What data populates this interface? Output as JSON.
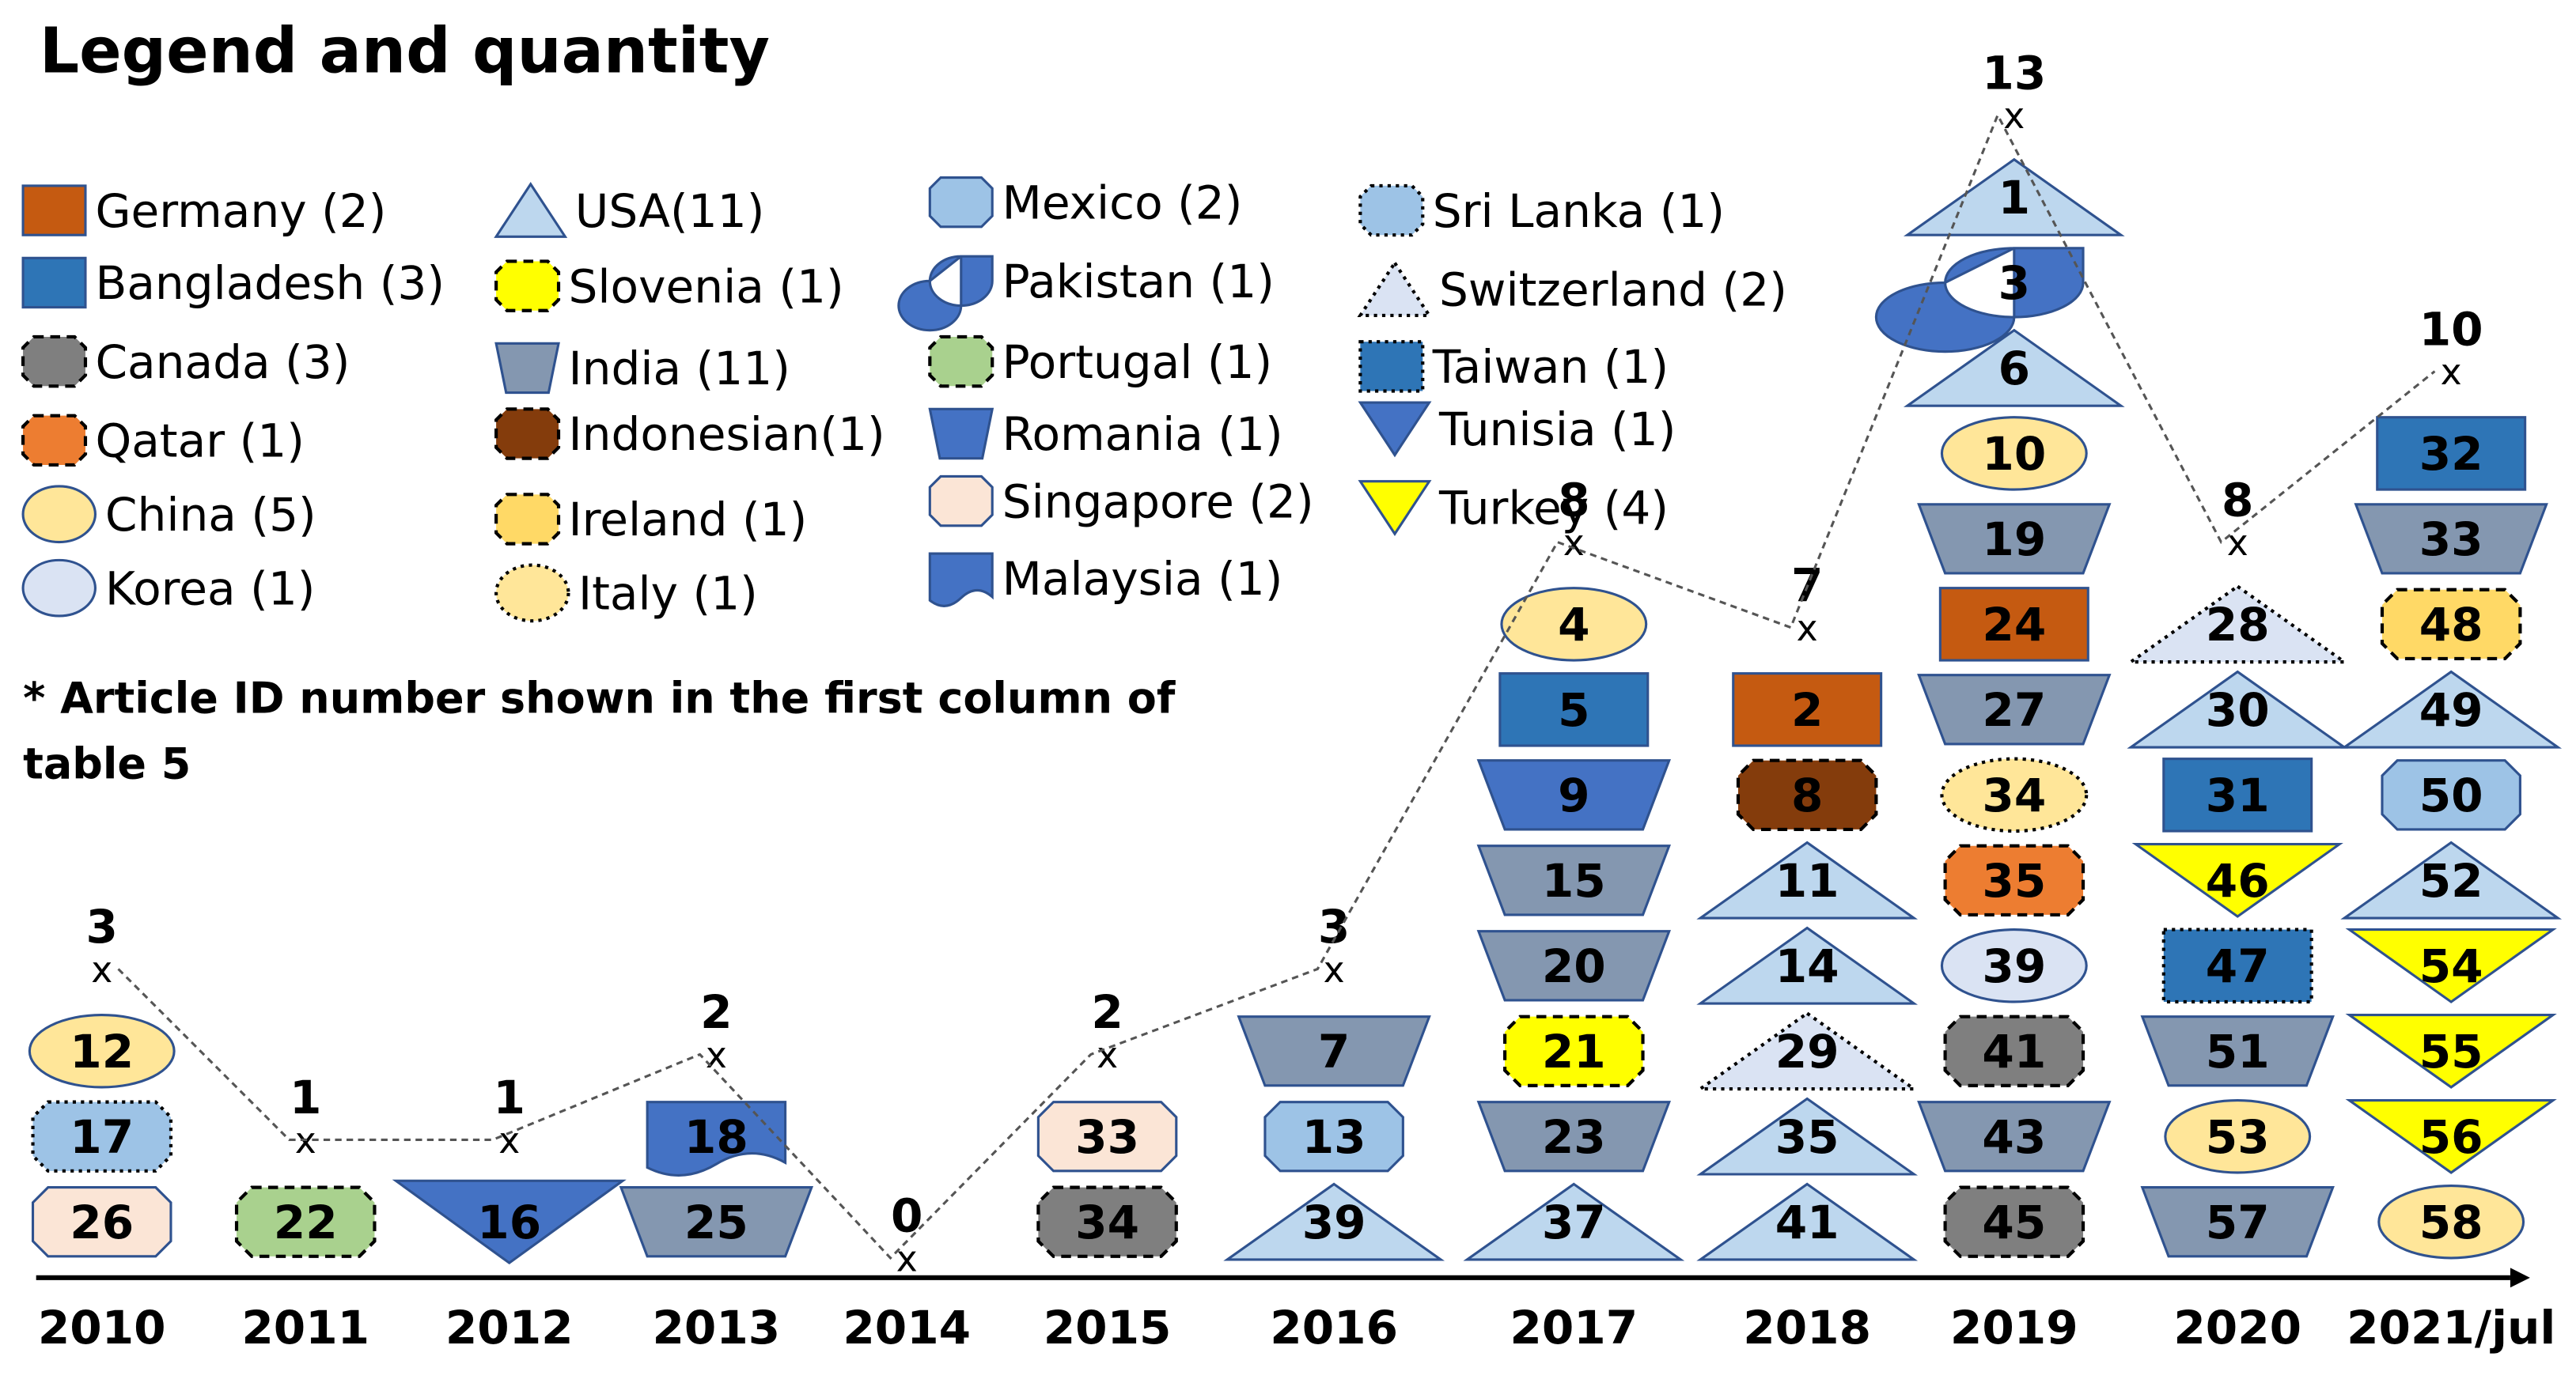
{
  "title": "Legend and quantity",
  "note_line1": "* Article ID number shown in the first column of",
  "note_line2": "table 5",
  "colors": {
    "germany": "#c55a11",
    "bangladesh": "#2e75b6",
    "canada": "#7f7f7f",
    "qatar": "#ed7d31",
    "china": "#ffe699",
    "korea": "#dae3f3",
    "usa": "#bdd7ee",
    "slovenia": "#ffff00",
    "india": "#8497b0",
    "indonesia": "#843c0c",
    "ireland": "#ffd966",
    "italy": "#ffe699",
    "mexico": "#9dc3e6",
    "pakistan": "#4472c4",
    "portugal": "#a9d18e",
    "romania": "#4472c4",
    "singapore": "#fbe5d6",
    "malaysia": "#4472c4",
    "srilanka": "#9dc3e6",
    "switzerland": "#dae3f3",
    "taiwan": "#2e75b6",
    "tunisia": "#4472c4",
    "turkey": "#ffff00"
  },
  "legend": [
    {
      "key": "germany",
      "shape": "square",
      "label": "Germany (2)"
    },
    {
      "key": "bangladesh",
      "shape": "square",
      "label": "Bangladesh (3)"
    },
    {
      "key": "canada",
      "shape": "octagon-dash",
      "label": "Canada (3)"
    },
    {
      "key": "qatar",
      "shape": "octagon-dash",
      "label": "Qatar (1)"
    },
    {
      "key": "china",
      "shape": "ellipse",
      "label": "China (5)"
    },
    {
      "key": "korea",
      "shape": "ellipse",
      "label": "Korea (1)"
    },
    {
      "key": "usa",
      "shape": "triangle",
      "label": "USA(11)"
    },
    {
      "key": "slovenia",
      "shape": "octagon-dash",
      "label": "Slovenia (1)"
    },
    {
      "key": "india",
      "shape": "trapezoid",
      "label": "India (11)"
    },
    {
      "key": "indonesia",
      "shape": "octagon-dash",
      "label": "Indonesian(1)"
    },
    {
      "key": "ireland",
      "shape": "octagon-dash",
      "label": "Ireland (1)"
    },
    {
      "key": "italy",
      "shape": "ellipse-dot",
      "label": "Italy (1)"
    },
    {
      "key": "mexico",
      "shape": "octagon",
      "label": "Mexico (2)"
    },
    {
      "key": "pakistan",
      "shape": "teardrop",
      "label": "Pakistan (1)"
    },
    {
      "key": "portugal",
      "shape": "octagon-dash",
      "label": "Portugal (1)"
    },
    {
      "key": "romania",
      "shape": "trapezoid",
      "label": "Romania (1)"
    },
    {
      "key": "singapore",
      "shape": "octagon",
      "label": "Singapore (2)"
    },
    {
      "key": "malaysia",
      "shape": "wave",
      "label": "Malaysia (1)"
    },
    {
      "key": "srilanka",
      "shape": "octagon-dot",
      "label": "Sri Lanka (1)"
    },
    {
      "key": "switzerland",
      "shape": "triangle-dot",
      "label": "Switzerland (2)"
    },
    {
      "key": "taiwan",
      "shape": "square-dot",
      "label": "Taiwan (1)"
    },
    {
      "key": "tunisia",
      "shape": "down-triangle",
      "label": "Tunisia (1)"
    },
    {
      "key": "turkey",
      "shape": "down-triangle",
      "label": "Turkey (4)"
    }
  ],
  "chart_data": {
    "type": "stacked-shape-timeline",
    "title": "Legend and quantity",
    "categories": [
      "2010",
      "2011",
      "2012",
      "2013",
      "2014",
      "2015",
      "2016",
      "2017",
      "2018",
      "2019",
      "2020",
      "2021/jul"
    ],
    "totals": [
      3,
      1,
      1,
      2,
      0,
      2,
      3,
      8,
      7,
      13,
      8,
      10
    ],
    "total_labels": [
      "3",
      "1",
      "1",
      "2",
      "0",
      "2",
      "3",
      "8",
      "7",
      "13",
      "8",
      "10"
    ],
    "marker": "x",
    "stacks": [
      [
        {
          "id": "12",
          "country": "china"
        },
        {
          "id": "17",
          "country": "srilanka"
        },
        {
          "id": "26",
          "country": "singapore"
        }
      ],
      [
        {
          "id": "22",
          "country": "portugal"
        }
      ],
      [
        {
          "id": "16",
          "country": "tunisia"
        }
      ],
      [
        {
          "id": "18",
          "country": "malaysia"
        },
        {
          "id": "25",
          "country": "india"
        }
      ],
      [],
      [
        {
          "id": "33",
          "country": "singapore"
        },
        {
          "id": "34",
          "country": "canada"
        }
      ],
      [
        {
          "id": "7",
          "country": "india"
        },
        {
          "id": "13",
          "country": "mexico"
        },
        {
          "id": "39",
          "country": "usa"
        }
      ],
      [
        {
          "id": "4",
          "country": "china"
        },
        {
          "id": "5",
          "country": "bangladesh"
        },
        {
          "id": "9",
          "country": "romania"
        },
        {
          "id": "15",
          "country": "india"
        },
        {
          "id": "20",
          "country": "india"
        },
        {
          "id": "21",
          "country": "slovenia"
        },
        {
          "id": "23",
          "country": "india"
        },
        {
          "id": "37",
          "country": "usa"
        }
      ],
      [
        {
          "id": "2",
          "country": "germany"
        },
        {
          "id": "8",
          "country": "indonesia"
        },
        {
          "id": "11",
          "country": "usa"
        },
        {
          "id": "14",
          "country": "usa"
        },
        {
          "id": "29",
          "country": "switzerland"
        },
        {
          "id": "35",
          "country": "usa"
        },
        {
          "id": "41",
          "country": "usa"
        }
      ],
      [
        {
          "id": "1",
          "country": "usa"
        },
        {
          "id": "3",
          "country": "pakistan"
        },
        {
          "id": "6",
          "country": "usa"
        },
        {
          "id": "10",
          "country": "china"
        },
        {
          "id": "19",
          "country": "india"
        },
        {
          "id": "24",
          "country": "germany"
        },
        {
          "id": "27",
          "country": "india"
        },
        {
          "id": "34",
          "country": "italy"
        },
        {
          "id": "35",
          "country": "qatar"
        },
        {
          "id": "39",
          "country": "korea"
        },
        {
          "id": "41",
          "country": "canada"
        },
        {
          "id": "43",
          "country": "india"
        },
        {
          "id": "45",
          "country": "canada"
        }
      ],
      [
        {
          "id": "28",
          "country": "switzerland"
        },
        {
          "id": "30",
          "country": "usa"
        },
        {
          "id": "31",
          "country": "bangladesh"
        },
        {
          "id": "46",
          "country": "turkey"
        },
        {
          "id": "47",
          "country": "taiwan"
        },
        {
          "id": "51",
          "country": "india"
        },
        {
          "id": "53",
          "country": "china"
        },
        {
          "id": "57",
          "country": "india"
        }
      ],
      [
        {
          "id": "32",
          "country": "bangladesh"
        },
        {
          "id": "33",
          "country": "india"
        },
        {
          "id": "48",
          "country": "ireland"
        },
        {
          "id": "49",
          "country": "usa"
        },
        {
          "id": "50",
          "country": "mexico"
        },
        {
          "id": "52",
          "country": "usa"
        },
        {
          "id": "54",
          "country": "turkey"
        },
        {
          "id": "55",
          "country": "turkey"
        },
        {
          "id": "56",
          "country": "turkey"
        },
        {
          "id": "58",
          "country": "china"
        }
      ]
    ]
  }
}
